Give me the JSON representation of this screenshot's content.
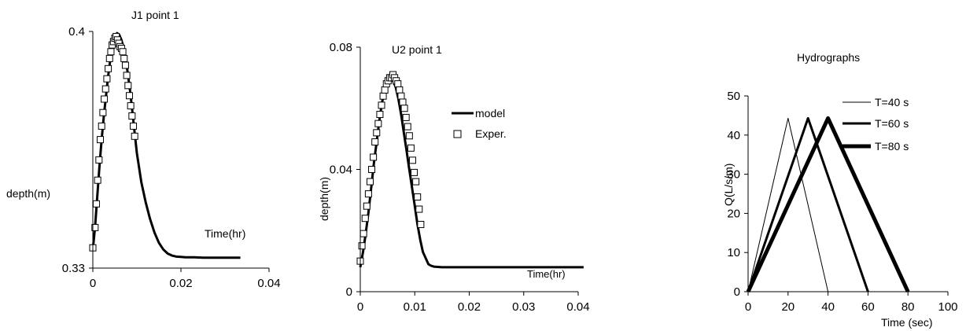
{
  "chart_data": [
    {
      "type": "line",
      "title": "J1 point 1",
      "xlabel": "Time(hr)",
      "ylabel": "depth(m)",
      "xlim": [
        0,
        0.04
      ],
      "ylim": [
        0.33,
        0.4
      ],
      "xticks": [
        "0",
        "0.02",
        "0.04"
      ],
      "yticks": [
        "0.33",
        "0.4"
      ],
      "series": [
        {
          "kind": "line",
          "x": [
            0,
            0.0005,
            0.001,
            0.0015,
            0.002,
            0.0025,
            0.003,
            0.0035,
            0.004,
            0.0045,
            0.005,
            0.0055,
            0.006,
            0.0065,
            0.007,
            0.0075,
            0.008,
            0.0085,
            0.009,
            0.0095,
            0.01,
            0.011,
            0.012,
            0.013,
            0.014,
            0.015,
            0.016,
            0.017,
            0.018,
            0.019,
            0.02,
            0.021,
            0.022,
            0.023,
            0.025,
            0.028,
            0.0335
          ],
          "y": [
            0.3355,
            0.342,
            0.351,
            0.36,
            0.368,
            0.375,
            0.381,
            0.387,
            0.392,
            0.396,
            0.3985,
            0.3995,
            0.399,
            0.3975,
            0.395,
            0.3915,
            0.387,
            0.382,
            0.376,
            0.37,
            0.364,
            0.3555,
            0.3495,
            0.3445,
            0.3405,
            0.3375,
            0.3355,
            0.3343,
            0.3337,
            0.3334,
            0.3333,
            0.3332,
            0.3332,
            0.3332,
            0.3331,
            0.3331,
            0.3331
          ]
        },
        {
          "kind": "markers",
          "x": [
            0,
            0.0005,
            0.0008,
            0.0011,
            0.0014,
            0.0017,
            0.002,
            0.0023,
            0.0026,
            0.0029,
            0.0032,
            0.0035,
            0.0038,
            0.0041,
            0.0044,
            0.0047,
            0.005,
            0.0053,
            0.0056,
            0.0059,
            0.0062,
            0.0065,
            0.0068,
            0.0071,
            0.0074,
            0.0077,
            0.008,
            0.0083,
            0.0086,
            0.0089,
            0.0092,
            0.0095
          ],
          "y": [
            0.336,
            0.342,
            0.349,
            0.356,
            0.362,
            0.368,
            0.372,
            0.376,
            0.38,
            0.383,
            0.386,
            0.389,
            0.392,
            0.394,
            0.396,
            0.397,
            0.398,
            0.3985,
            0.3975,
            0.3965,
            0.3955,
            0.395,
            0.394,
            0.392,
            0.39,
            0.387,
            0.384,
            0.381,
            0.378,
            0.375,
            0.372,
            0.369
          ]
        }
      ]
    },
    {
      "type": "line",
      "title": "U2  point 1",
      "xlabel": "Time(hr)",
      "ylabel": "depth(m)",
      "xlim": [
        0,
        0.04
      ],
      "ylim": [
        0,
        0.08
      ],
      "xticks": [
        "0",
        "0.01",
        "0.02",
        "0.03",
        "0.04"
      ],
      "yticks": [
        "0",
        "0.04",
        "0.08"
      ],
      "legend": {
        "position": "right",
        "entries": [
          "model",
          "Exper."
        ]
      },
      "series": [
        {
          "name": "model",
          "kind": "line",
          "x": [
            0,
            0.0005,
            0.001,
            0.0015,
            0.002,
            0.0025,
            0.003,
            0.0035,
            0.004,
            0.0045,
            0.005,
            0.0055,
            0.006,
            0.0065,
            0.007,
            0.0075,
            0.008,
            0.0085,
            0.009,
            0.0095,
            0.01,
            0.0105,
            0.011,
            0.0115,
            0.012,
            0.0125,
            0.013,
            0.0135,
            0.015,
            0.02,
            0.03,
            0.041
          ],
          "y": [
            0.008,
            0.013,
            0.019,
            0.026,
            0.034,
            0.042,
            0.049,
            0.056,
            0.062,
            0.066,
            0.069,
            0.07,
            0.069,
            0.067,
            0.063,
            0.058,
            0.052,
            0.046,
            0.04,
            0.034,
            0.028,
            0.022,
            0.017,
            0.013,
            0.011,
            0.009,
            0.0085,
            0.0082,
            0.008,
            0.008,
            0.008,
            0.008
          ]
        },
        {
          "name": "Exper.",
          "kind": "markers",
          "x": [
            0,
            0.0003,
            0.0006,
            0.0009,
            0.0012,
            0.0015,
            0.0018,
            0.0021,
            0.0024,
            0.0027,
            0.003,
            0.0033,
            0.0036,
            0.0039,
            0.0042,
            0.0045,
            0.0048,
            0.0051,
            0.0054,
            0.0057,
            0.006,
            0.0063,
            0.0066,
            0.0069,
            0.0072,
            0.0075,
            0.0078,
            0.0081,
            0.0084,
            0.0087,
            0.009,
            0.0093,
            0.0096,
            0.0099,
            0.0102,
            0.0105,
            0.0108,
            0.0111
          ],
          "y": [
            0.01,
            0.015,
            0.019,
            0.024,
            0.028,
            0.032,
            0.036,
            0.04,
            0.044,
            0.049,
            0.052,
            0.055,
            0.058,
            0.061,
            0.064,
            0.066,
            0.068,
            0.069,
            0.07,
            0.07,
            0.071,
            0.07,
            0.069,
            0.068,
            0.066,
            0.064,
            0.062,
            0.06,
            0.057,
            0.054,
            0.051,
            0.047,
            0.043,
            0.039,
            0.036,
            0.031,
            0.027,
            0.022
          ]
        }
      ]
    },
    {
      "type": "line",
      "title": "Hydrographs",
      "xlabel": "Time (sec)",
      "ylabel": "Q(L/s/m)",
      "xlim": [
        0,
        100
      ],
      "ylim": [
        0,
        50
      ],
      "xticks": [
        "0",
        "20",
        "40",
        "60",
        "80",
        "100"
      ],
      "yticks": [
        "0",
        "10",
        "20",
        "30",
        "40",
        "50"
      ],
      "legend": {
        "position": "top-right",
        "entries": [
          "T=40 s",
          "T=60 s",
          "T=80 s"
        ]
      },
      "series": [
        {
          "name": "T=40 s",
          "width": 1,
          "x": [
            0,
            20,
            40
          ],
          "y": [
            0,
            44.3,
            0
          ]
        },
        {
          "name": "T=60 s",
          "width": 3,
          "x": [
            0,
            30,
            60
          ],
          "y": [
            0,
            44.3,
            0
          ]
        },
        {
          "name": "T=80 s",
          "width": 5,
          "x": [
            0,
            40,
            80
          ],
          "y": [
            0,
            44.3,
            0
          ]
        }
      ]
    }
  ]
}
